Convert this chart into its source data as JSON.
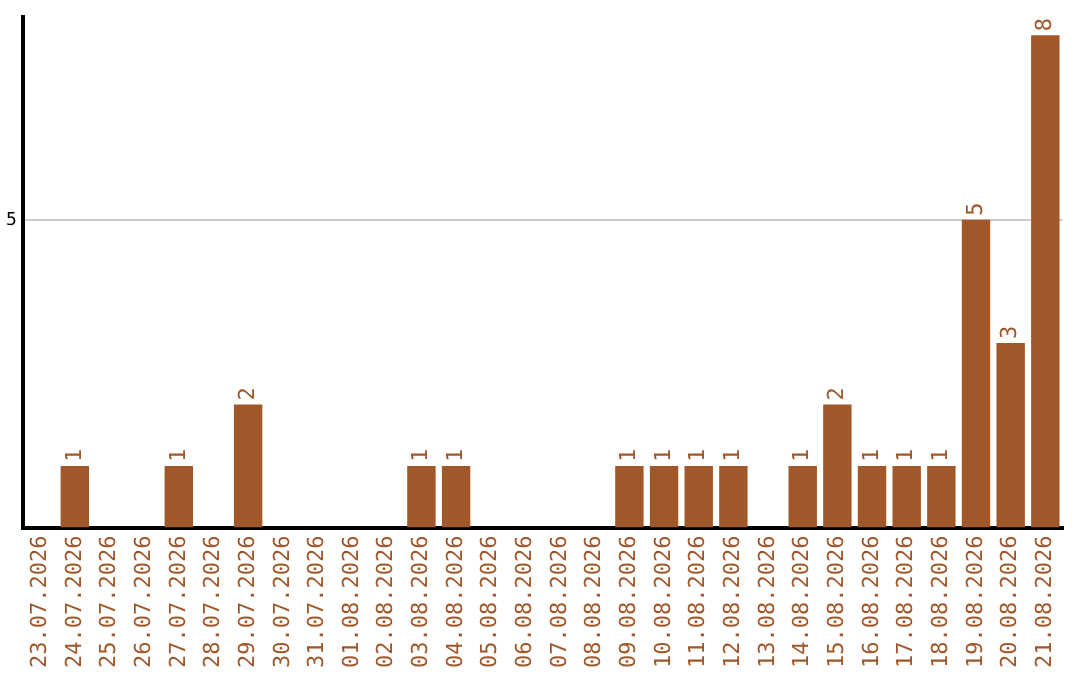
{
  "chart_data": {
    "type": "bar",
    "categories": [
      "23.07.2026",
      "24.07.2026",
      "25.07.2026",
      "26.07.2026",
      "27.07.2026",
      "28.07.2026",
      "29.07.2026",
      "30.07.2026",
      "31.07.2026",
      "01.08.2026",
      "02.08.2026",
      "03.08.2026",
      "04.08.2026",
      "05.08.2026",
      "06.08.2026",
      "07.08.2026",
      "08.08.2026",
      "09.08.2026",
      "10.08.2026",
      "11.08.2026",
      "12.08.2026",
      "13.08.2026",
      "14.08.2026",
      "15.08.2026",
      "16.08.2026",
      "17.08.2026",
      "18.08.2026",
      "19.08.2026",
      "20.08.2026",
      "21.08.2026"
    ],
    "values": [
      0,
      1,
      0,
      0,
      1,
      0,
      2,
      0,
      0,
      0,
      0,
      1,
      1,
      0,
      0,
      0,
      0,
      1,
      1,
      1,
      1,
      0,
      1,
      2,
      1,
      1,
      1,
      5,
      3,
      8
    ],
    "value_labels": [
      null,
      "1",
      null,
      null,
      "1",
      null,
      "2",
      null,
      null,
      null,
      null,
      "1",
      "1",
      null,
      null,
      null,
      null,
      "1",
      "1",
      "1",
      "1",
      null,
      "1",
      "2",
      "1",
      "1",
      "1",
      "5",
      "3",
      "8"
    ],
    "color": "#a0572a",
    "ylim": [
      0,
      8.3
    ],
    "yticks": [
      5
    ],
    "grid": "y",
    "legend": false
  }
}
